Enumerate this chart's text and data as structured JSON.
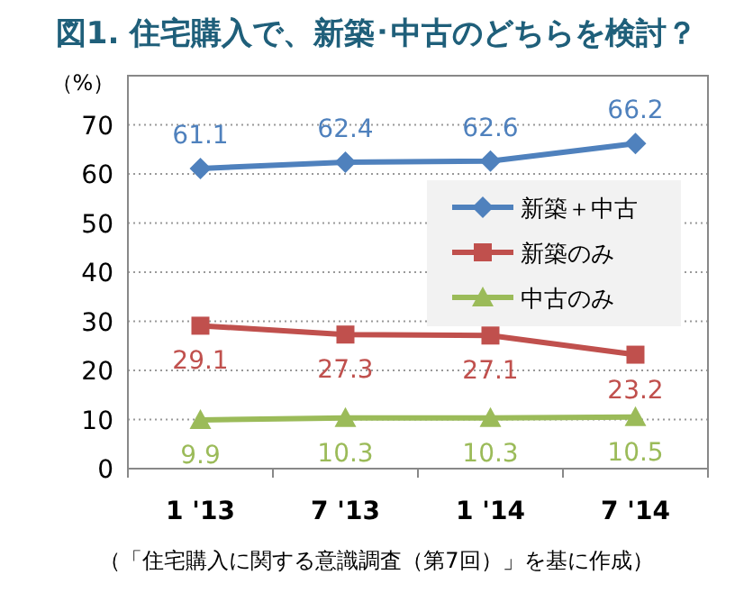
{
  "chart_data": {
    "type": "line",
    "title": "図1. 住宅購入で、新築･中古のどちらを検討？",
    "ylabel": "（%）",
    "categories": [
      "1 '13",
      "7 '13",
      "1 '14",
      "7 '14"
    ],
    "series": [
      {
        "name": "新築＋中古",
        "color": "#4f81bd",
        "marker": "diamond",
        "values": [
          61.1,
          62.4,
          62.6,
          66.2
        ]
      },
      {
        "name": "新築のみ",
        "color": "#c0504d",
        "marker": "square",
        "values": [
          29.1,
          27.3,
          27.1,
          23.2
        ]
      },
      {
        "name": "中古のみ",
        "color": "#9bbb59",
        "marker": "triangle",
        "values": [
          9.9,
          10.3,
          10.3,
          10.5
        ]
      }
    ],
    "ylim": [
      0,
      80
    ],
    "yticks": [
      0,
      10,
      20,
      30,
      40,
      50,
      60,
      70
    ],
    "grid": "y",
    "legend": "right",
    "data_labels": true,
    "annotations": [
      "（「住宅購入に関する意識調査（第7回）」を基に作成）"
    ]
  }
}
